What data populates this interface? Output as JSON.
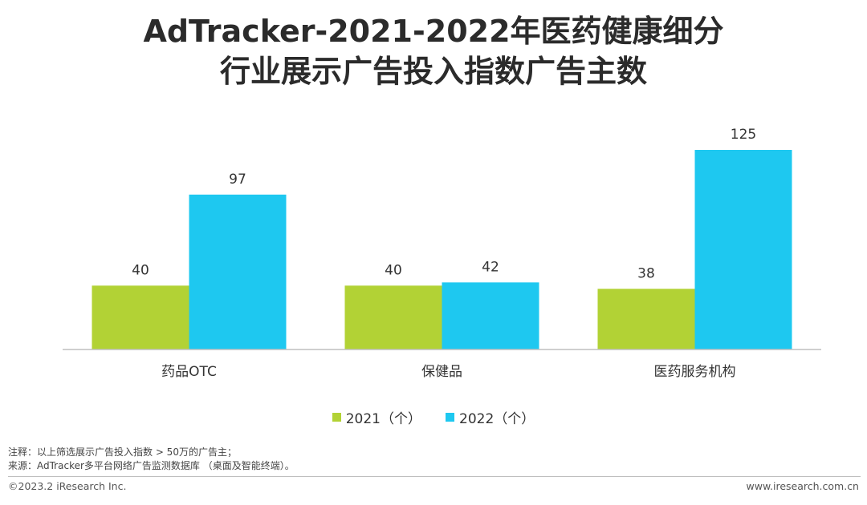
{
  "title": {
    "line1": "AdTracker-2021-2022年医药健康细分",
    "line2": "行业展示广告投入指数广告主数"
  },
  "colors": {
    "series_2021": "#b2d235",
    "series_2022": "#1ec8f0",
    "axis": "#bfbfbf"
  },
  "chart_data": {
    "type": "bar",
    "categories": [
      "药品OTC",
      "保健品",
      "医药服务机构"
    ],
    "series": [
      {
        "name": "2021（个）",
        "values": [
          40,
          40,
          38
        ]
      },
      {
        "name": "2022（个）",
        "values": [
          97,
          42,
          125
        ]
      }
    ],
    "ylim": [
      0,
      125
    ],
    "grid": false,
    "legend_position": "bottom"
  },
  "notes": {
    "note": "注释：以上筛选展示广告投入指数 > 50万的广告主；",
    "source": "来源：AdTracker多平台网络广告监测数据库 （桌面及智能终端）。"
  },
  "footer": {
    "copyright": "©2023.2 iResearch Inc.",
    "website": "www.iresearch.com.cn"
  }
}
